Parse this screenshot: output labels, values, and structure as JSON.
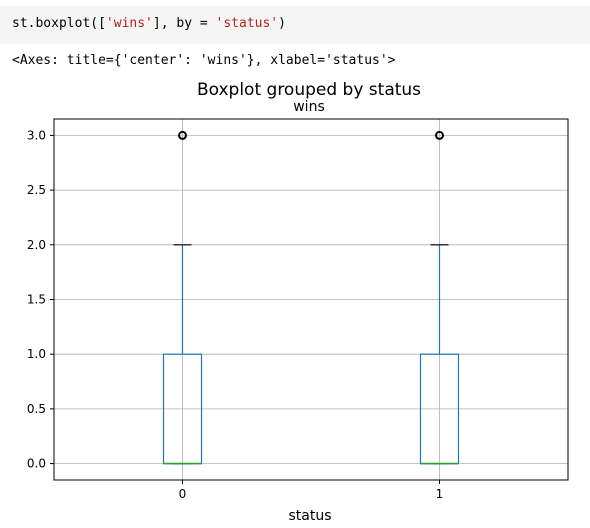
{
  "cell": {
    "code_prefix": "st.boxplot([",
    "code_str1": "'wins'",
    "code_mid": "], by = ",
    "code_str2": "'status'",
    "code_suffix": ")",
    "output_text": "<Axes: title={'center': 'wins'}, xlabel='status'>"
  },
  "chart_data": {
    "type": "boxplot",
    "suptitle": "Boxplot grouped by status",
    "title": "wins",
    "xlabel": "status",
    "ylabel": "",
    "categories": [
      "0",
      "1"
    ],
    "ylim": [
      -0.15,
      3.15
    ],
    "yticks": [
      0.0,
      0.5,
      1.0,
      1.5,
      2.0,
      2.5,
      3.0
    ],
    "ytick_labels": [
      "0.0",
      "0.5",
      "1.0",
      "1.5",
      "2.0",
      "2.5",
      "3.0"
    ],
    "grid": true,
    "boxes": [
      {
        "category": "0",
        "whisker_low": 0,
        "q1": 0,
        "median": 0,
        "q3": 1,
        "whisker_high": 2,
        "fliers": [
          3
        ]
      },
      {
        "category": "1",
        "whisker_low": 0,
        "q1": 0,
        "median": 0,
        "q3": 1,
        "whisker_high": 2,
        "fliers": [
          3
        ]
      }
    ],
    "colors": {
      "box": "#1f77b4",
      "median": "#2ca02c",
      "grid": "#b0b0b0",
      "flier": "#000000"
    }
  }
}
